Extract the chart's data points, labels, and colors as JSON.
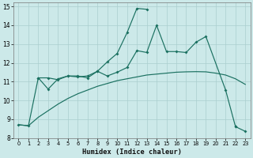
{
  "xlabel": "Humidex (Indice chaleur)",
  "xlim": [
    -0.5,
    23.5
  ],
  "ylim": [
    8,
    15.2
  ],
  "xticks": [
    0,
    1,
    2,
    3,
    4,
    5,
    6,
    7,
    8,
    9,
    10,
    11,
    12,
    13,
    14,
    15,
    16,
    17,
    18,
    19,
    20,
    21,
    22,
    23
  ],
  "yticks": [
    8,
    9,
    10,
    11,
    12,
    13,
    14,
    15
  ],
  "bg_color": "#cce9e9",
  "grid_color": "#aacece",
  "line_color": "#1a7060",
  "line1_x": [
    0,
    1,
    2,
    3,
    4,
    5,
    6,
    7,
    8,
    9,
    10,
    11,
    12,
    13
  ],
  "line1_y": [
    8.7,
    8.65,
    11.2,
    10.6,
    11.15,
    11.3,
    11.3,
    11.2,
    11.55,
    12.05,
    12.5,
    13.6,
    14.9,
    14.85
  ],
  "line2_x": [
    2,
    3,
    4,
    5,
    6,
    7,
    8,
    9,
    10,
    11,
    12,
    13,
    14,
    15,
    16,
    17,
    18,
    19,
    21,
    22,
    23
  ],
  "line2_y": [
    11.2,
    11.2,
    11.1,
    11.3,
    11.25,
    11.3,
    11.55,
    11.3,
    11.5,
    11.75,
    12.65,
    12.55,
    14.0,
    12.6,
    12.6,
    12.55,
    13.1,
    13.4,
    10.55,
    8.6,
    8.35
  ],
  "line3_x": [
    0,
    1,
    2,
    3,
    4,
    5,
    6,
    7,
    8,
    9,
    10,
    11,
    12,
    13,
    14,
    15,
    16,
    17,
    18,
    19,
    20,
    21,
    22,
    23
  ],
  "line3_y": [
    8.7,
    8.65,
    9.1,
    9.45,
    9.8,
    10.1,
    10.35,
    10.55,
    10.75,
    10.9,
    11.05,
    11.15,
    11.25,
    11.35,
    11.4,
    11.45,
    11.5,
    11.52,
    11.53,
    11.52,
    11.45,
    11.35,
    11.15,
    10.85
  ]
}
